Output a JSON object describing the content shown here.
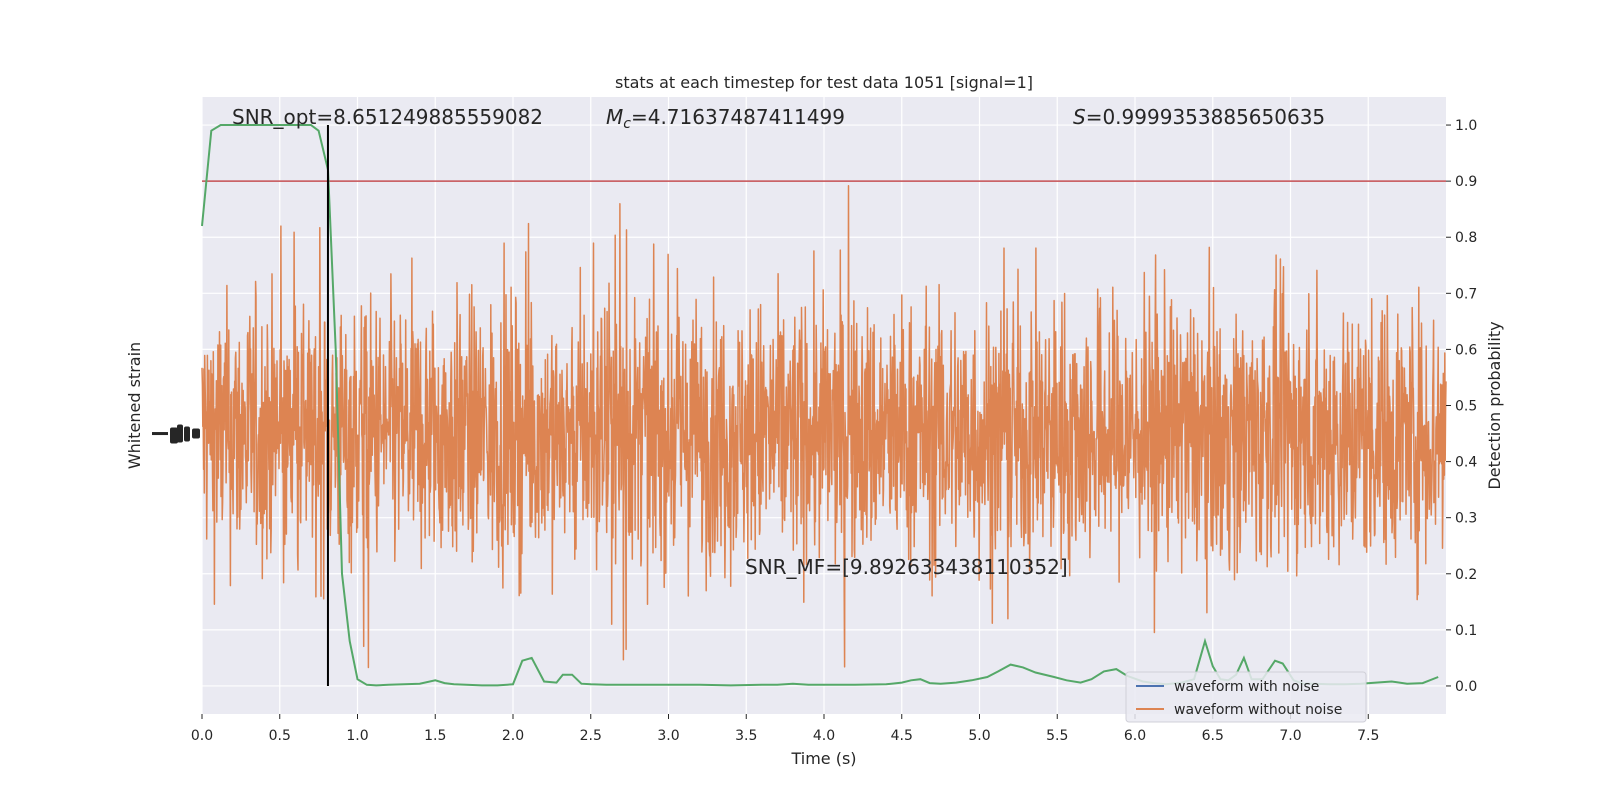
{
  "chart_data": {
    "type": "line",
    "title": "stats at each timestep for test data 1051 [signal=1]",
    "xlabel": "Time (s)",
    "ylabel_left": "Whitened strain",
    "ylabel_right": "Detection probability",
    "xlim": [
      0.0,
      8.0
    ],
    "ylim_right": [
      -0.05,
      1.05
    ],
    "xticks": [
      "0.0",
      "0.5",
      "1.0",
      "1.5",
      "2.0",
      "2.5",
      "3.0",
      "3.5",
      "4.0",
      "4.5",
      "5.0",
      "5.5",
      "6.0",
      "6.5",
      "7.0",
      "7.5"
    ],
    "yticks_right": [
      "0.0",
      "0.1",
      "0.2",
      "0.3",
      "0.4",
      "0.5",
      "0.6",
      "0.7",
      "0.8",
      "0.9",
      "1.0"
    ],
    "grid": true,
    "legend_position": "lower-right",
    "threshold": 0.9,
    "marker_time": 0.81,
    "annotations": {
      "snr_opt": "SNR_opt=8.651249885559082",
      "mc_symbol": "M",
      "mc_sub": "c",
      "mc_value": "=4.71637487411499",
      "s_symbol": "S",
      "s_value": "=0.9999353885650635",
      "snr_mf": "SNR_MF=[9.892633438110352]"
    },
    "series": [
      {
        "name": "waveform with noise",
        "color": "#4c72b0"
      },
      {
        "name": "waveform without noise",
        "color": "#dd8452"
      }
    ],
    "probability": {
      "color": "#55a868",
      "x": [
        0.0,
        0.06,
        0.12,
        0.2,
        0.3,
        0.4,
        0.5,
        0.6,
        0.7,
        0.75,
        0.81,
        0.86,
        0.9,
        0.95,
        1.0,
        1.06,
        1.12,
        1.2,
        1.3,
        1.4,
        1.5,
        1.56,
        1.62,
        1.7,
        1.8,
        1.9,
        2.0,
        2.06,
        2.12,
        2.2,
        2.28,
        2.32,
        2.38,
        2.44,
        2.5,
        2.6,
        2.8,
        3.0,
        3.2,
        3.4,
        3.6,
        3.7,
        3.8,
        3.9,
        4.0,
        4.2,
        4.4,
        4.5,
        4.56,
        4.62,
        4.68,
        4.75,
        4.85,
        4.95,
        5.05,
        5.12,
        5.2,
        5.28,
        5.36,
        5.48,
        5.56,
        5.65,
        5.72,
        5.8,
        5.88,
        5.95,
        6.05,
        6.12,
        6.2,
        6.3,
        6.38,
        6.45,
        6.5,
        6.55,
        6.6,
        6.65,
        6.7,
        6.75,
        6.82,
        6.9,
        6.95,
        7.02,
        7.08,
        7.15,
        7.25,
        7.35,
        7.45,
        7.55,
        7.65,
        7.75,
        7.85,
        7.95
      ],
      "y": [
        0.82,
        0.99,
        1.0,
        1.0,
        1.0,
        1.0,
        1.0,
        1.0,
        1.0,
        0.99,
        0.92,
        0.6,
        0.2,
        0.08,
        0.012,
        0.002,
        0.001,
        0.002,
        0.003,
        0.004,
        0.01,
        0.005,
        0.003,
        0.002,
        0.001,
        0.001,
        0.003,
        0.045,
        0.05,
        0.008,
        0.006,
        0.02,
        0.02,
        0.004,
        0.003,
        0.002,
        0.002,
        0.002,
        0.002,
        0.001,
        0.002,
        0.002,
        0.004,
        0.002,
        0.002,
        0.002,
        0.003,
        0.006,
        0.01,
        0.012,
        0.005,
        0.004,
        0.006,
        0.01,
        0.016,
        0.026,
        0.038,
        0.033,
        0.024,
        0.016,
        0.01,
        0.006,
        0.012,
        0.026,
        0.03,
        0.018,
        0.008,
        0.005,
        0.003,
        0.006,
        0.012,
        0.08,
        0.035,
        0.012,
        0.01,
        0.02,
        0.05,
        0.012,
        0.012,
        0.045,
        0.04,
        0.01,
        0.004,
        0.004,
        0.003,
        0.003,
        0.004,
        0.006,
        0.008,
        0.004,
        0.005,
        0.016
      ]
    }
  }
}
